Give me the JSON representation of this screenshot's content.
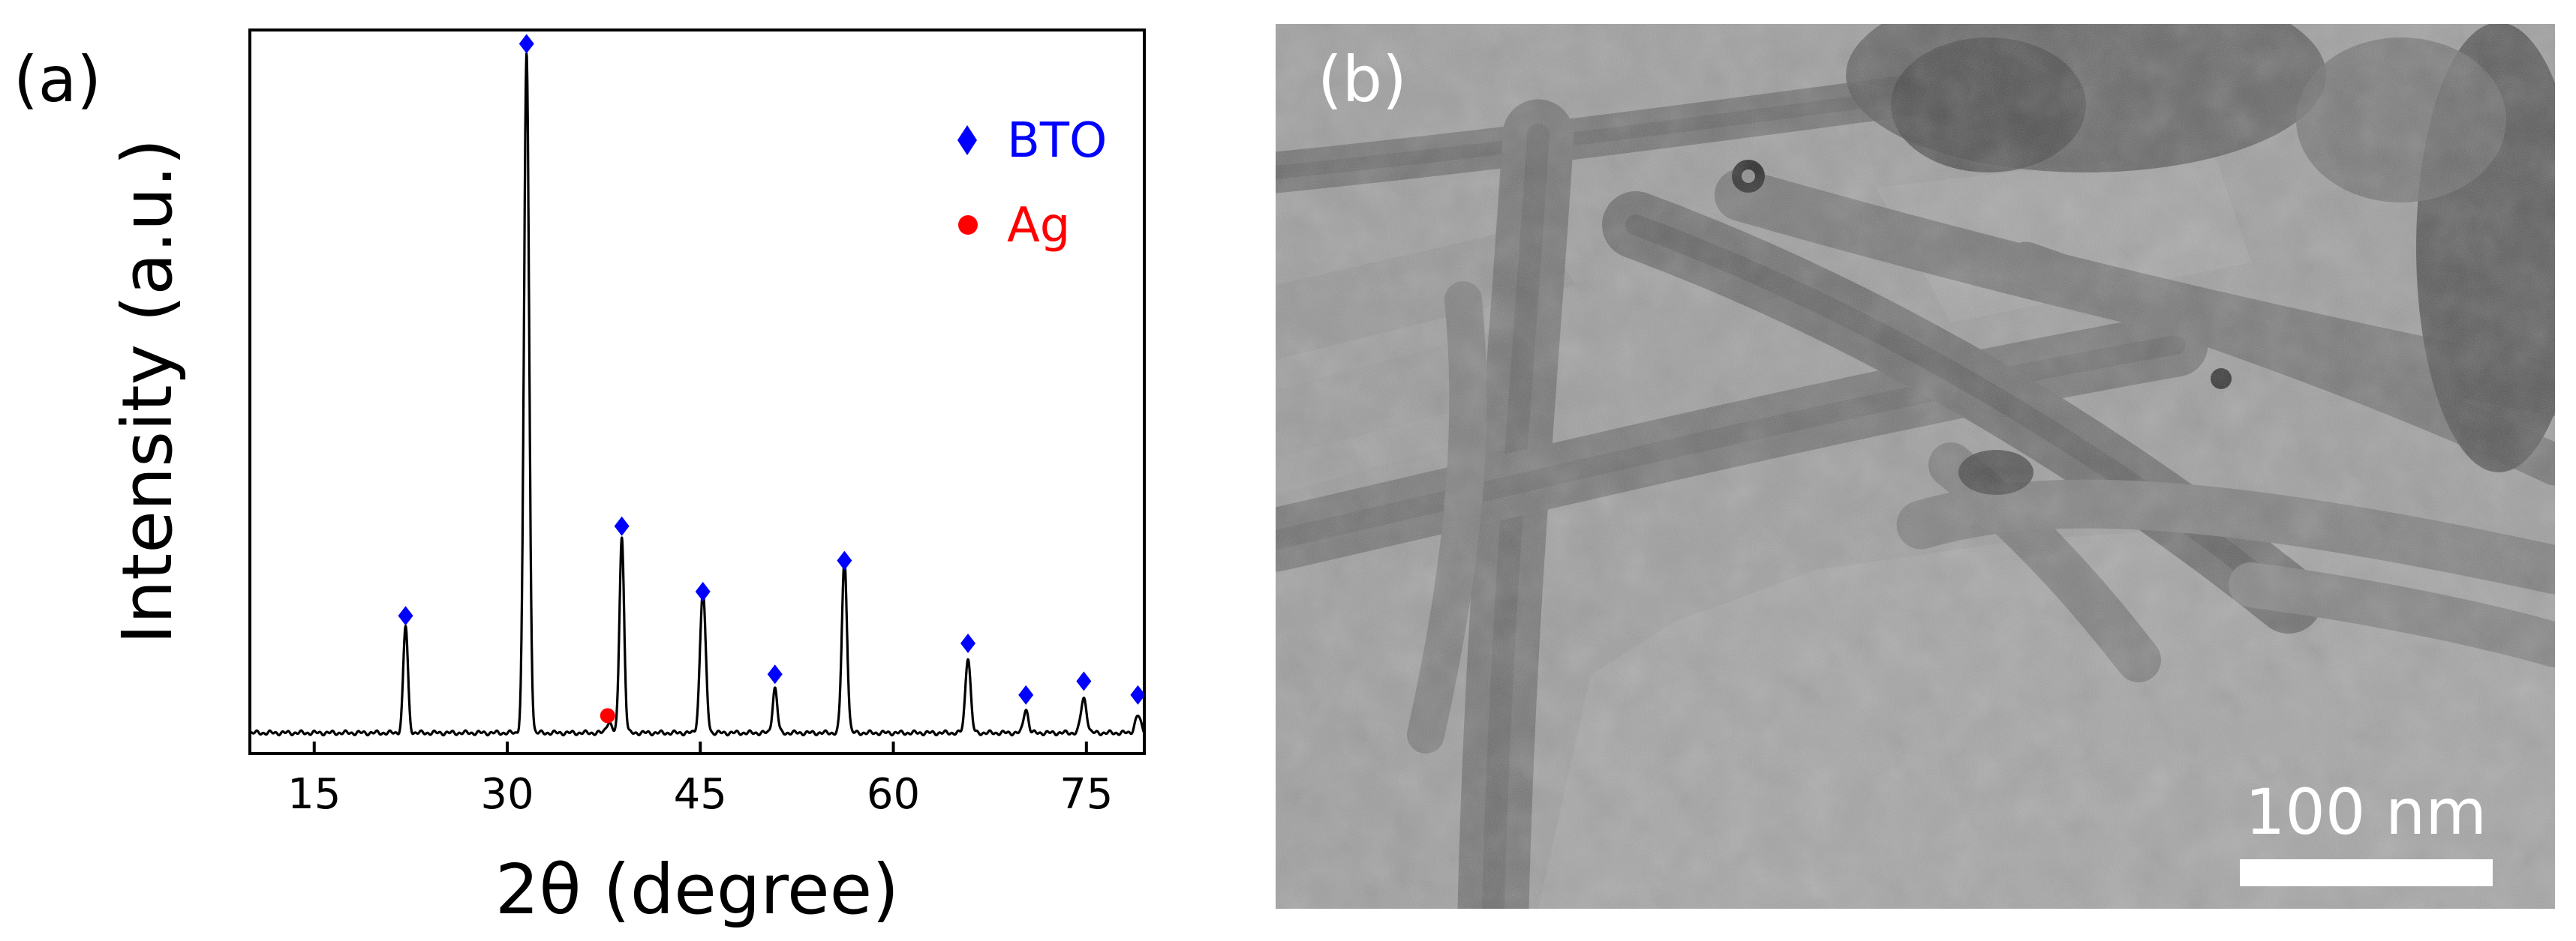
{
  "panel_a": {
    "label": "(a)"
  },
  "panel_b": {
    "label": "(b)",
    "scale_bar": {
      "label": "100 nm"
    }
  },
  "chart_data": {
    "type": "line",
    "title": "",
    "xlabel": "2θ (degree)",
    "ylabel": "Intensity (a.u.)",
    "xlim": [
      10,
      79.5
    ],
    "ylim": [
      0,
      105
    ],
    "xticks": [
      15,
      30,
      45,
      60,
      75
    ],
    "grid": false,
    "legend": {
      "placement": "top-right",
      "entries": [
        {
          "label": "BTO",
          "marker": "diamond",
          "color": "#0000ff"
        },
        {
          "label": "Ag",
          "marker": "circle",
          "color": "#ff0000"
        }
      ]
    },
    "baseline": 3,
    "peaks": [
      {
        "x": 22.1,
        "height": 15.5,
        "width": 0.18
      },
      {
        "x": 31.5,
        "height": 98.5,
        "width": 0.2
      },
      {
        "x": 37.9,
        "height": 1.6,
        "width": 0.2
      },
      {
        "x": 38.9,
        "height": 28.5,
        "width": 0.18
      },
      {
        "x": 45.2,
        "height": 20.5,
        "width": 0.22
      },
      {
        "x": 50.8,
        "height": 6.5,
        "width": 0.18
      },
      {
        "x": 56.2,
        "height": 25,
        "width": 0.2
      },
      {
        "x": 65.8,
        "height": 11,
        "width": 0.2
      },
      {
        "x": 70.3,
        "height": 3.5,
        "width": 0.18
      },
      {
        "x": 74.8,
        "height": 5,
        "width": 0.22
      },
      {
        "x": 79.0,
        "height": 2.5,
        "width": 0.22
      }
    ],
    "markers": [
      {
        "phase": "BTO",
        "x": 22.1,
        "y": 20
      },
      {
        "phase": "BTO",
        "x": 31.5,
        "y": 103
      },
      {
        "phase": "BTO",
        "x": 38.9,
        "y": 33
      },
      {
        "phase": "BTO",
        "x": 45.2,
        "y": 23.5
      },
      {
        "phase": "BTO",
        "x": 50.8,
        "y": 11.5
      },
      {
        "phase": "BTO",
        "x": 56.2,
        "y": 28
      },
      {
        "phase": "BTO",
        "x": 65.8,
        "y": 16
      },
      {
        "phase": "BTO",
        "x": 70.3,
        "y": 8.5
      },
      {
        "phase": "BTO",
        "x": 74.8,
        "y": 10.5
      },
      {
        "phase": "BTO",
        "x": 79.0,
        "y": 8.5
      },
      {
        "phase": "Ag",
        "x": 37.8,
        "y": 5.5
      }
    ]
  }
}
